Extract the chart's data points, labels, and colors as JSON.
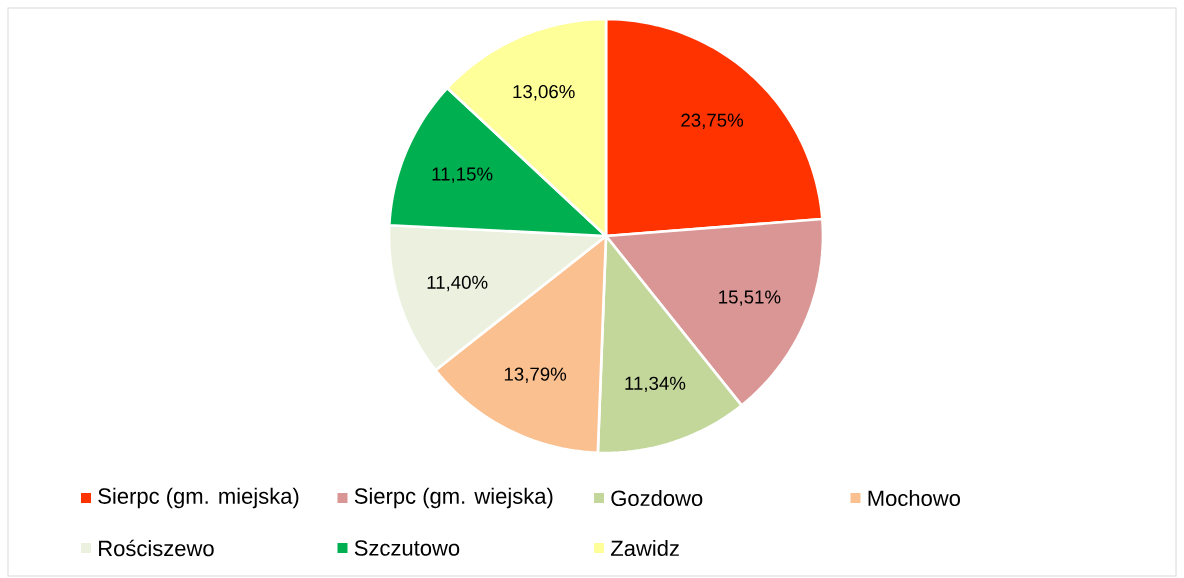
{
  "chart_data": {
    "type": "pie",
    "categories": [
      "Sierpc (gm. miejska)",
      "Sierpc (gm. wiejska)",
      "Gozdowo",
      "Mochowo",
      "Rościszewo",
      "Szczutowo",
      "Zawidz"
    ],
    "values": [
      23.75,
      15.51,
      11.34,
      13.79,
      11.4,
      11.15,
      13.06
    ],
    "value_labels": [
      "23,75%",
      "15,51%",
      "11,34%",
      "13,79%",
      "11,40%",
      "11,15%",
      "13,06%"
    ],
    "colors": [
      "#ff3300",
      "#d99694",
      "#c4d79b",
      "#fac090",
      "#ebf1de",
      "#00b050",
      "#ffff99"
    ],
    "legend": "bottom"
  }
}
